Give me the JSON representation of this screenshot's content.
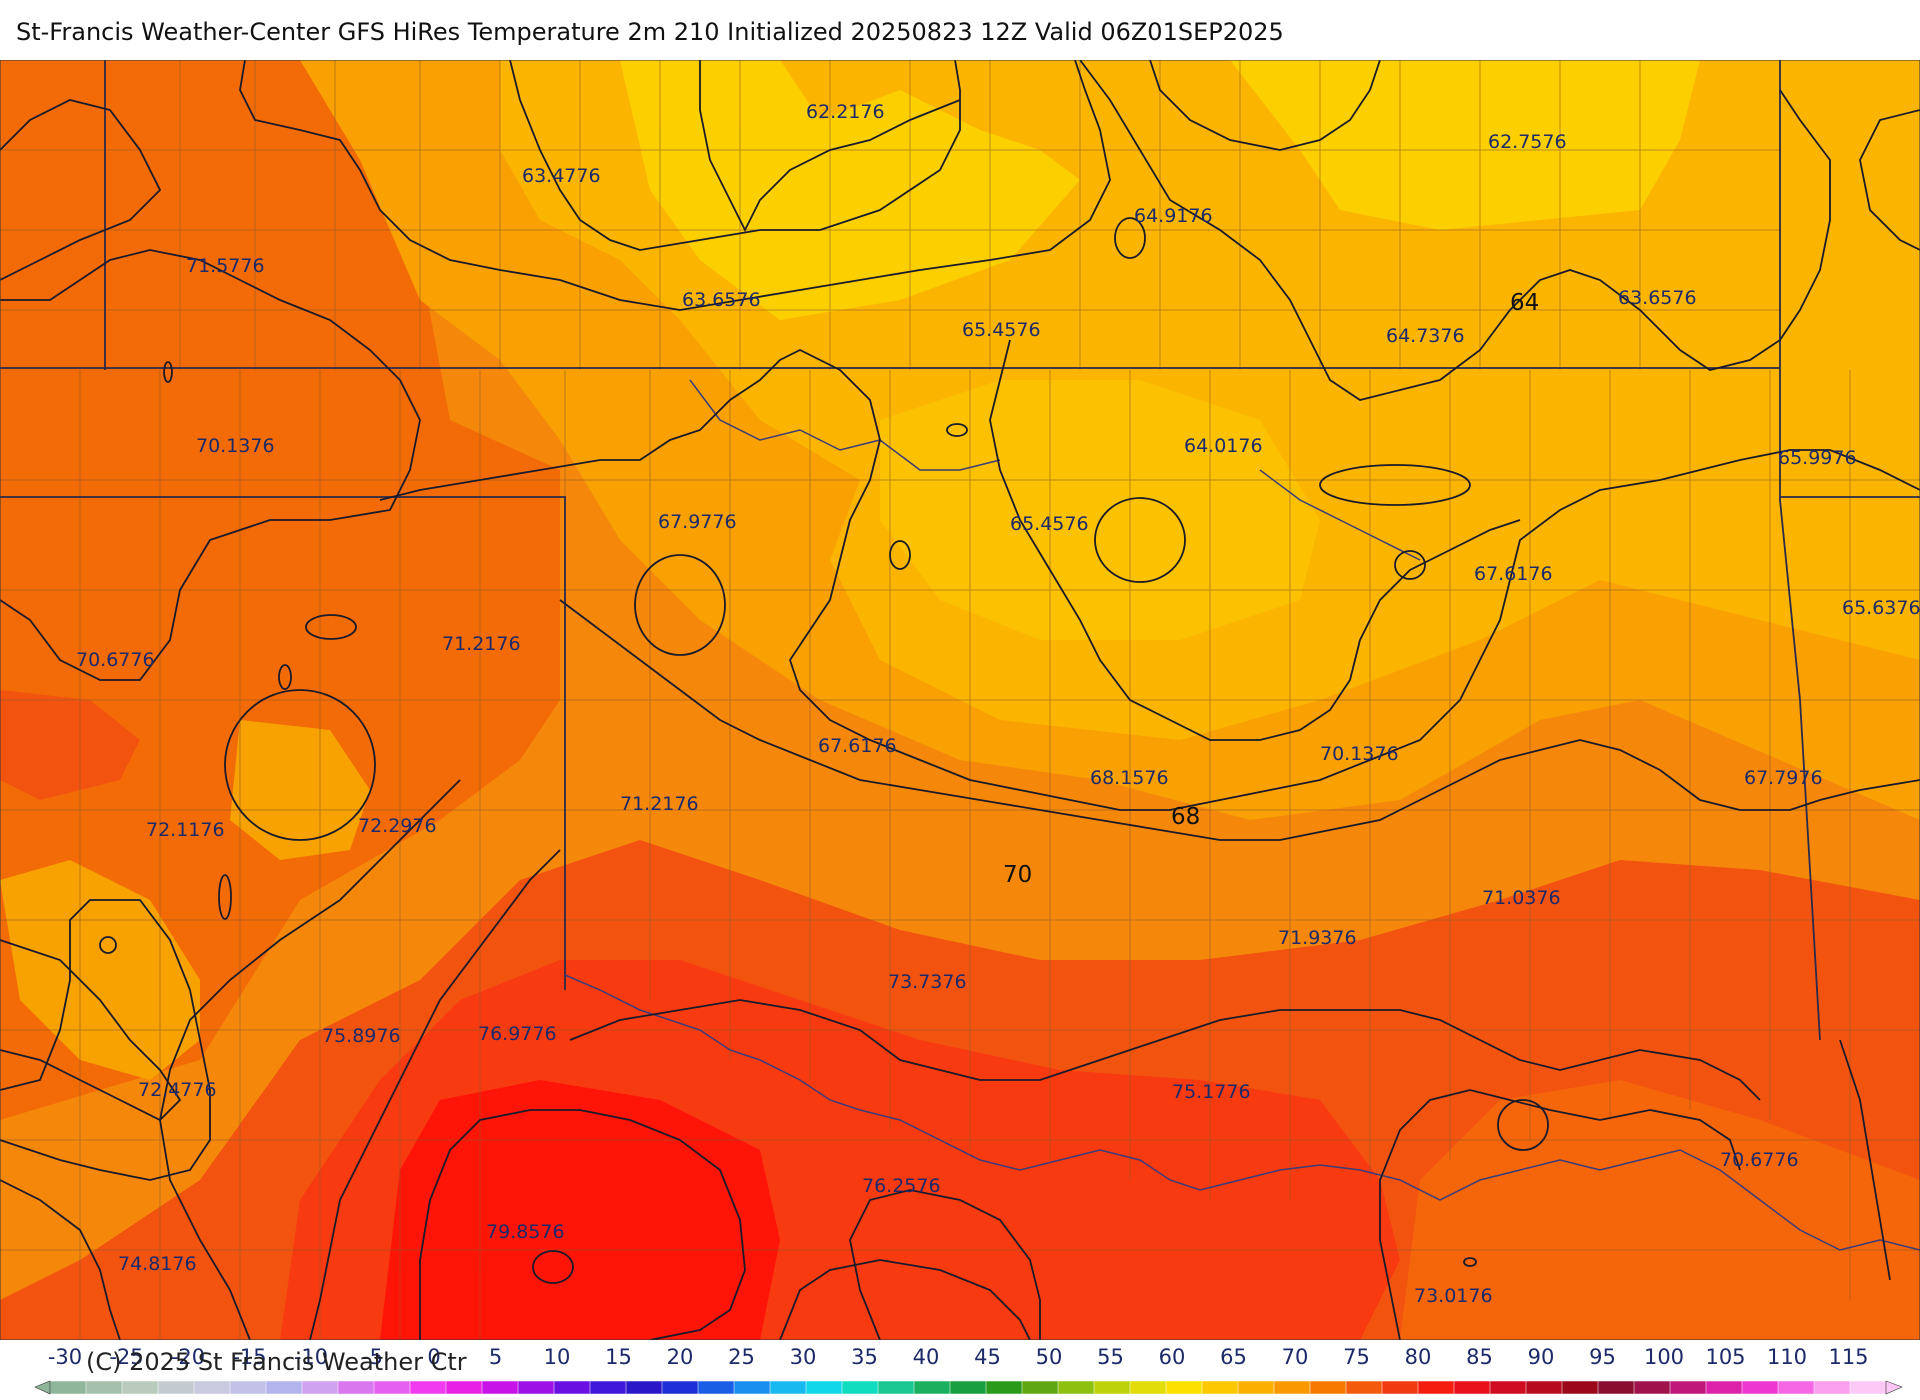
{
  "header": {
    "title": "St-Francis Weather-Center GFS HiRes Temperature 2m  210 Initialized 20250823 12Z Valid 06Z01SEP2025"
  },
  "footer": {
    "copyright": "(C) 2025 St Francis Weather Ctr"
  },
  "colors": {
    "background_warm": "#f5880a",
    "yellow": "#fccf00",
    "yellow_orange": "#fbb500",
    "orange": "#f7a200",
    "red_orange": "#f25410",
    "red": "#fa2c0c",
    "deep_red": "#ff1408",
    "contour": "#1a1a2a",
    "label_text": "#1d2a6a"
  },
  "colorbar": {
    "ticks": [
      "-30",
      "-25",
      "-20",
      "-15",
      "-10",
      "-5",
      "0",
      "5",
      "10",
      "15",
      "20",
      "25",
      "30",
      "35",
      "40",
      "45",
      "50",
      "55",
      "60",
      "65",
      "70",
      "75",
      "80",
      "85",
      "90",
      "95",
      "100",
      "105",
      "110",
      "115"
    ],
    "colors": [
      "#8fb59b",
      "#a5c0ad",
      "#b9cbbc",
      "#c3cbd1",
      "#c9c9e0",
      "#c2c2e8",
      "#b3b3ee",
      "#cfa3ef",
      "#d977ef",
      "#e55ff0",
      "#f03bf0",
      "#e81fe5",
      "#c813e8",
      "#9d10e6",
      "#6a10e2",
      "#3f18dc",
      "#2a18c8",
      "#1e2ed6",
      "#1a5ee6",
      "#1a8ff0",
      "#18b8f0",
      "#10d8e8",
      "#10dcc0",
      "#18c890",
      "#1ab060",
      "#18a040",
      "#2a9a1a",
      "#5fa812",
      "#8ec010",
      "#bed20c",
      "#e2dc08",
      "#fce000",
      "#fcc800",
      "#fbb000",
      "#fa9800",
      "#f77a00",
      "#f35a0c",
      "#f23a10",
      "#f51e0e",
      "#e8101a",
      "#d00c20",
      "#b80a1e",
      "#9a081a",
      "#8a0e30",
      "#a0124c",
      "#c0187a",
      "#dc22a8",
      "#ee36d0",
      "#f566e4",
      "#fa9eee",
      "#fcc8f6"
    ]
  },
  "station_values": [
    "62.2176",
    "63.4776",
    "62.7576",
    "64.9176",
    "71.5776",
    "63.6576",
    "63.6576",
    "65.4576",
    "64.7376",
    "70.1376",
    "64.0176",
    "65.9976",
    "67.9776",
    "65.4576",
    "67.6176",
    "70.6776",
    "71.2176",
    "65.6376",
    "67.6176",
    "70.1376",
    "68.1576",
    "67.7976",
    "72.1176",
    "72.2976",
    "71.2176",
    "71.0376",
    "71.9376",
    "73.7376",
    "75.8976",
    "76.9776",
    "75.1776",
    "72.4776",
    "70.6776",
    "76.2576",
    "79.8576",
    "74.8176",
    "73.0176"
  ],
  "contour_labels": [
    "64",
    "68",
    "70"
  ]
}
